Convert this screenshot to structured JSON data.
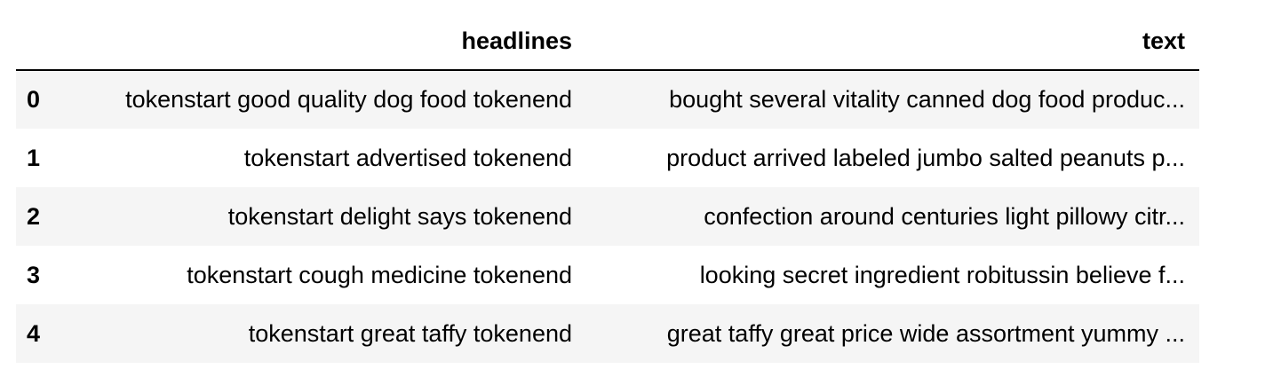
{
  "table": {
    "index_header": "",
    "columns": [
      "headlines",
      "text"
    ],
    "rows": [
      {
        "index": "0",
        "headlines": "tokenstart good quality dog food tokenend",
        "text": "bought several vitality canned dog food produc..."
      },
      {
        "index": "1",
        "headlines": "tokenstart advertised tokenend",
        "text": "product arrived labeled jumbo salted peanuts p..."
      },
      {
        "index": "2",
        "headlines": "tokenstart delight says tokenend",
        "text": "confection around centuries light pillowy citr..."
      },
      {
        "index": "3",
        "headlines": "tokenstart cough medicine tokenend",
        "text": "looking secret ingredient robitussin believe f..."
      },
      {
        "index": "4",
        "headlines": "tokenstart great taffy tokenend",
        "text": "great taffy great price wide assortment yummy ..."
      }
    ]
  },
  "colors": {
    "stripe": "#f5f5f5",
    "background": "#ffffff",
    "header_rule": "#000000"
  }
}
